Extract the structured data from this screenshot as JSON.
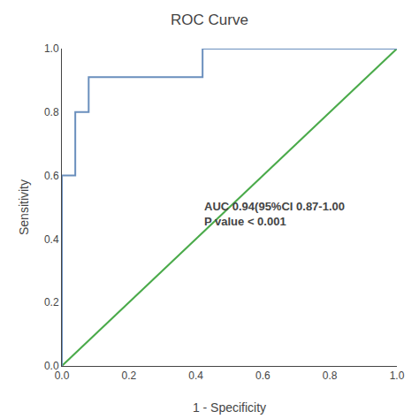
{
  "chart_data": {
    "type": "line",
    "title": "ROC Curve",
    "xlabel": "1 - Specificity",
    "ylabel": "Sensitivity",
    "series": [
      {
        "color": "#4aaa4a",
        "x": [
          0,
          1
        ],
        "values": [
          0,
          1
        ]
      },
      {
        "color": "#6a8fbd",
        "x": [
          0.0,
          0.0,
          0.04,
          0.04,
          0.08,
          0.08,
          0.42,
          0.42,
          1.0
        ],
        "values": [
          0.0,
          0.6,
          0.6,
          0.8,
          0.8,
          0.91,
          0.91,
          1.0,
          1.0
        ]
      }
    ],
    "annotations": [
      {
        "text": "AUC 0.94(95%CI 0.87-1.00\nP value < 0.001",
        "x": 0.42,
        "y": 0.48
      }
    ],
    "xlim": [
      0.0,
      1.0
    ],
    "ylim": [
      0.0,
      1.0
    ],
    "xticks": [
      {
        "value": 0.0,
        "label": "0.0"
      },
      0.2,
      0.4,
      0.6,
      0.8,
      {
        "value": 1.0,
        "label": "1.0"
      }
    ],
    "yticks": [
      {
        "value": 0.0,
        "label": "0.0"
      },
      0.2,
      0.4,
      0.6,
      0.8,
      {
        "value": 1.0,
        "label": "1.0"
      }
    ],
    "grid": false
  }
}
